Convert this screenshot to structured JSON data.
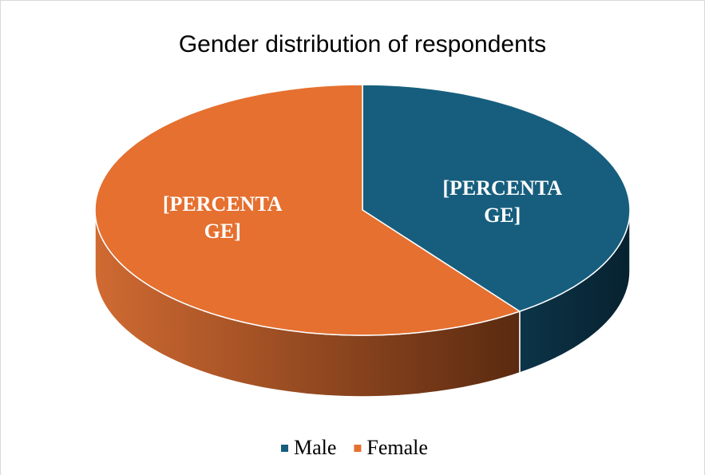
{
  "chart_data": {
    "type": "pie",
    "title": "Gender distribution of respondents",
    "categories": [
      "Male",
      "Female"
    ],
    "values": [
      40,
      60
    ],
    "value_labels": [
      "[PERCENTAGE]",
      "[PERCENTAGE]"
    ],
    "colors": [
      "#175e7e",
      "#e57030"
    ],
    "legend": "bottom"
  }
}
